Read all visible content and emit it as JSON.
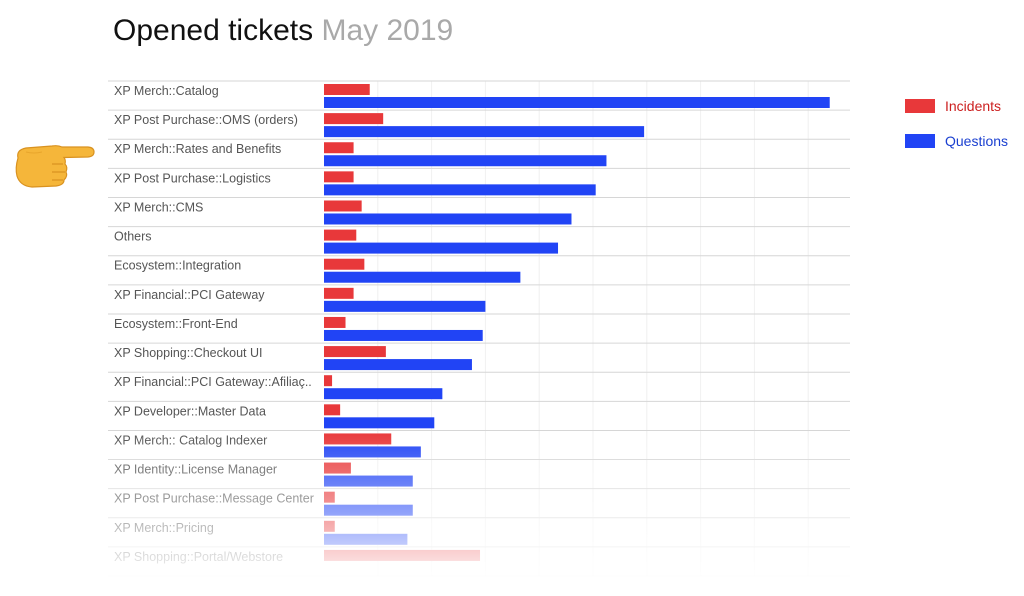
{
  "title": {
    "main": "Opened tickets",
    "sub": "May 2019"
  },
  "legend": [
    {
      "label": "Incidents",
      "color": "#e8383a",
      "text_color": "#cc2020"
    },
    {
      "label": "Questions",
      "color": "#2144f5",
      "text_color": "#1a3fd0"
    }
  ],
  "chart_data": {
    "type": "bar",
    "orientation": "horizontal",
    "grid": true,
    "legend_position": "top-right",
    "xlim": [
      0,
      19
    ],
    "categories": [
      "XP Merch::Catalog",
      "XP Post Purchase::OMS (orders)",
      "XP Merch::Rates and Benefits",
      "XP Post Purchase::Logistics",
      "XP Merch::CMS",
      "Others",
      "Ecosystem::Integration",
      "XP Financial::PCI Gateway",
      "Ecosystem::Front-End",
      "XP Shopping::Checkout UI",
      "XP Financial::PCI Gateway::Afiliaç..",
      "XP Developer::Master Data",
      "XP Merch:: Catalog Indexer",
      "XP Identity::License Manager",
      "XP Post Purchase::Message Center",
      "XP Merch::Pricing",
      "XP Shopping::Portal/Webstore"
    ],
    "series": [
      {
        "name": "Incidents",
        "color": "#e8383a",
        "values": [
          1.7,
          2.2,
          1.1,
          1.1,
          1.4,
          1.2,
          1.5,
          1.1,
          0.8,
          2.3,
          0.3,
          0.6,
          2.5,
          1.0,
          0.4,
          0.4,
          5.8
        ]
      },
      {
        "name": "Questions",
        "color": "#2144f5",
        "values": [
          18.8,
          11.9,
          10.5,
          10.1,
          9.2,
          8.7,
          7.3,
          6.0,
          5.9,
          5.5,
          4.4,
          4.1,
          3.6,
          3.3,
          3.3,
          3.1,
          null
        ]
      }
    ]
  },
  "hand_icon": "backhand-index-pointing-right-icon"
}
